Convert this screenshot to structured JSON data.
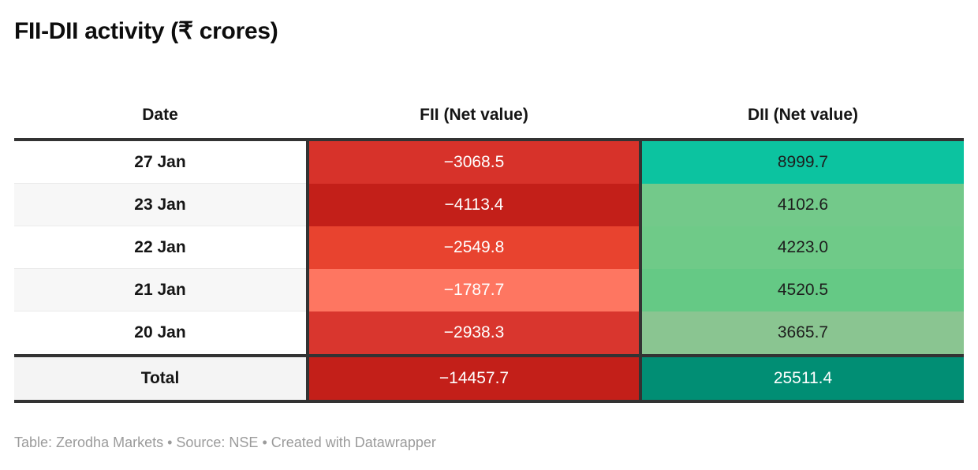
{
  "title": "FII-DII activity (₹ crores)",
  "footer": "Table: Zerodha Markets • Source: NSE • Created with Datawrapper",
  "colors": {
    "header_border": "#333333",
    "column_divider": "#333333",
    "footer_text": "#9b9b9b",
    "row_alt_bg": "#f7f7f7"
  },
  "chart_data": {
    "type": "table",
    "title": "FII-DII activity (₹ crores)",
    "columns": [
      "Date",
      "FII (Net value)",
      "DII (Net value)"
    ],
    "rows": [
      [
        "27 Jan",
        -3068.5,
        8999.7
      ],
      [
        "23 Jan",
        -4113.4,
        4102.6
      ],
      [
        "22 Jan",
        -2549.8,
        4223.0
      ],
      [
        "21 Jan",
        -1787.7,
        4520.5
      ],
      [
        "20 Jan",
        -2938.3,
        3665.7
      ],
      [
        "Total",
        -14457.7,
        25511.4
      ]
    ],
    "notes": "FII column heat-mapped red (negative values), DII column heat-mapped green/teal (positive values)"
  },
  "table": {
    "header": {
      "date": "Date",
      "fii": "FII (Net value)",
      "dii": "DII (Net value)"
    },
    "rows": [
      {
        "date": "27 Jan",
        "fii": "−3068.5",
        "dii": "8999.7",
        "date_bg": "#ffffff",
        "fii_bg": "#d7322a",
        "fii_fg": "#ffffff",
        "dii_bg": "#0cc3a0",
        "dii_fg": "#1d1d1d"
      },
      {
        "date": "23 Jan",
        "fii": "−4113.4",
        "dii": "4102.6",
        "date_bg": "#f7f7f7",
        "fii_bg": "#c31f19",
        "fii_fg": "#ffffff",
        "dii_bg": "#73c98a",
        "dii_fg": "#1d1d1d"
      },
      {
        "date": "22 Jan",
        "fii": "−2549.8",
        "dii": "4223.0",
        "date_bg": "#ffffff",
        "fii_bg": "#e8432f",
        "fii_fg": "#ffffff",
        "dii_bg": "#6fca88",
        "dii_fg": "#1d1d1d"
      },
      {
        "date": "21 Jan",
        "fii": "−1787.7",
        "dii": "4520.5",
        "date_bg": "#f7f7f7",
        "fii_bg": "#fe7661",
        "fii_fg": "#ffffff",
        "dii_bg": "#65c985",
        "dii_fg": "#1d1d1d"
      },
      {
        "date": "20 Jan",
        "fii": "−2938.3",
        "dii": "3665.7",
        "date_bg": "#ffffff",
        "fii_bg": "#d9362e",
        "fii_fg": "#ffffff",
        "dii_bg": "#8ac591",
        "dii_fg": "#1d1d1d"
      }
    ],
    "total": {
      "date": "Total",
      "fii": "−14457.7",
      "dii": "25511.4",
      "date_bg": "#f4f4f4",
      "fii_bg": "#c31f19",
      "fii_fg": "#ffffff",
      "dii_bg": "#018e74",
      "dii_fg": "#ffffff"
    }
  }
}
